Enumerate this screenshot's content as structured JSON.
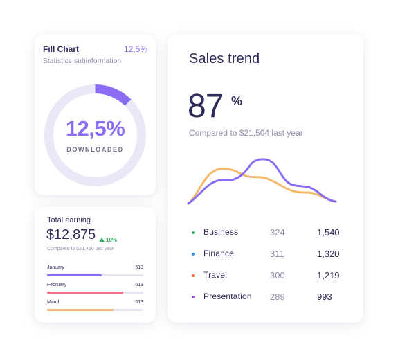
{
  "fill_chart": {
    "title": "Fill Chart",
    "percent_label": "12,5%",
    "subtitle": "Statistics subinformation",
    "donut_value": "12,5%",
    "donut_caption": "DOWNLOADED",
    "fill_fraction": 0.125,
    "accent_color": "#8a6df2",
    "track_color": "#e8e8f6"
  },
  "earning": {
    "title": "Total earning",
    "amount": "$12,875",
    "change": "10%",
    "compare": "Compared to $21,490 last year",
    "bars": [
      {
        "label": "January",
        "value": "613",
        "fill": 0.57,
        "color": "#8a6df2"
      },
      {
        "label": "February",
        "value": "613",
        "fill": 0.79,
        "color": "#f2708a"
      },
      {
        "label": "March",
        "value": "613",
        "fill": 0.69,
        "color": "#f6b96b"
      }
    ]
  },
  "sales": {
    "title": "Sales trend",
    "value": "87",
    "unit": "%",
    "compare": "Compared to $21,504 last year",
    "trend_colors": {
      "orange": "#f6b96b",
      "purple": "#8a6df2"
    },
    "legend": [
      {
        "name": "Business",
        "v1": "324",
        "v2": "1,540",
        "color": "#2fb05c"
      },
      {
        "name": "Finance",
        "v1": "311",
        "v2": "1,320",
        "color": "#3a8ee6"
      },
      {
        "name": "Travel",
        "v1": "300",
        "v2": "1,219",
        "color": "#f0703a"
      },
      {
        "name": "Presentation",
        "v1": "289",
        "v2": "993",
        "color": "#9b4fe0"
      }
    ]
  }
}
